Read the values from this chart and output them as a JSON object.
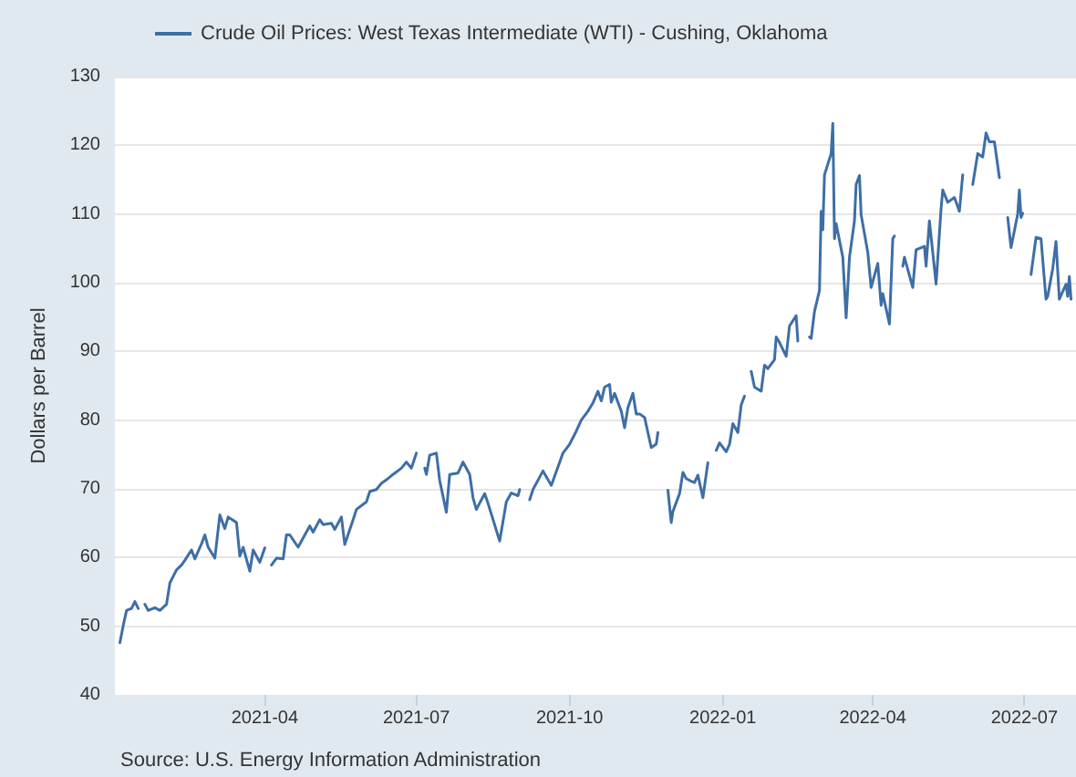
{
  "chart_data": {
    "type": "line",
    "ylabel": "Dollars per Barrel",
    "annotations": [
      "Source: U.S. Energy Information Administration"
    ],
    "x": [
      "2021-01-04",
      "2021-01-06",
      "2021-01-08",
      "2021-01-11",
      "2021-01-13",
      "2021-01-15",
      "2021-01-18",
      "2021-01-19",
      "2021-01-21",
      "2021-01-25",
      "2021-01-28",
      "2021-02-01",
      "2021-02-03",
      "2021-02-07",
      "2021-02-10",
      "2021-02-12",
      "2021-02-16",
      "2021-02-18",
      "2021-02-22",
      "2021-02-24",
      "2021-02-26",
      "2021-03-02",
      "2021-03-05",
      "2021-03-08",
      "2021-03-10",
      "2021-03-15",
      "2021-03-17",
      "2021-03-19",
      "2021-03-23",
      "2021-03-25",
      "2021-03-29",
      "2021-04-01",
      "2021-04-02",
      "2021-04-05",
      "2021-04-08",
      "2021-04-12",
      "2021-04-14",
      "2021-04-16",
      "2021-04-21",
      "2021-04-23",
      "2021-04-28",
      "2021-04-30",
      "2021-05-04",
      "2021-05-06",
      "2021-05-11",
      "2021-05-13",
      "2021-05-17",
      "2021-05-19",
      "2021-05-24",
      "2021-05-26",
      "2021-06-01",
      "2021-06-03",
      "2021-06-07",
      "2021-06-10",
      "2021-06-14",
      "2021-06-17",
      "2021-06-22",
      "2021-06-25",
      "2021-06-28",
      "2021-07-01",
      "2021-07-05",
      "2021-07-06",
      "2021-07-07",
      "2021-07-09",
      "2021-07-13",
      "2021-07-15",
      "2021-07-19",
      "2021-07-21",
      "2021-07-26",
      "2021-07-29",
      "2021-08-02",
      "2021-08-04",
      "2021-08-06",
      "2021-08-11",
      "2021-08-13",
      "2021-08-20",
      "2021-08-24",
      "2021-08-27",
      "2021-08-31",
      "2021-09-01",
      "2021-09-06",
      "2021-09-07",
      "2021-09-09",
      "2021-09-15",
      "2021-09-20",
      "2021-09-27",
      "2021-10-01",
      "2021-10-05",
      "2021-10-08",
      "2021-10-12",
      "2021-10-15",
      "2021-10-18",
      "2021-10-20",
      "2021-10-22",
      "2021-10-25",
      "2021-10-26",
      "2021-10-28",
      "2021-11-01",
      "2021-11-03",
      "2021-11-05",
      "2021-11-08",
      "2021-11-10",
      "2021-11-12",
      "2021-11-15",
      "2021-11-17",
      "2021-11-19",
      "2021-11-22",
      "2021-11-23",
      "2021-11-25",
      "2021-11-29",
      "2021-12-01",
      "2021-12-02",
      "2021-12-06",
      "2021-12-08",
      "2021-12-10",
      "2021-12-13",
      "2021-12-15",
      "2021-12-17",
      "2021-12-20",
      "2021-12-23",
      "2021-12-24",
      "2021-12-28",
      "2021-12-30",
      "2022-01-03",
      "2022-01-05",
      "2022-01-07",
      "2022-01-10",
      "2022-01-12",
      "2022-01-14",
      "2022-01-17",
      "2022-01-18",
      "2022-01-20",
      "2022-01-24",
      "2022-01-26",
      "2022-01-28",
      "2022-02-01",
      "2022-02-02",
      "2022-02-04",
      "2022-02-08",
      "2022-02-10",
      "2022-02-14",
      "2022-02-15",
      "2022-02-21",
      "2022-02-22",
      "2022-02-23",
      "2022-02-25",
      "2022-02-28",
      "2022-03-01",
      "2022-03-02",
      "2022-03-03",
      "2022-03-07",
      "2022-03-08",
      "2022-03-09",
      "2022-03-10",
      "2022-03-14",
      "2022-03-16",
      "2022-03-18",
      "2022-03-21",
      "2022-03-22",
      "2022-03-24",
      "2022-03-25",
      "2022-03-29",
      "2022-03-31",
      "2022-04-04",
      "2022-04-06",
      "2022-04-07",
      "2022-04-11",
      "2022-04-13",
      "2022-04-14",
      "2022-04-15",
      "2022-04-19",
      "2022-04-20",
      "2022-04-25",
      "2022-04-27",
      "2022-05-02",
      "2022-05-03",
      "2022-05-05",
      "2022-05-09",
      "2022-05-12",
      "2022-05-13",
      "2022-05-16",
      "2022-05-20",
      "2022-05-23",
      "2022-05-25",
      "2022-05-30",
      "2022-05-31",
      "2022-06-03",
      "2022-06-06",
      "2022-06-08",
      "2022-06-10",
      "2022-06-13",
      "2022-06-14",
      "2022-06-16",
      "2022-06-20",
      "2022-06-21",
      "2022-06-22",
      "2022-06-23",
      "2022-06-27",
      "2022-06-28",
      "2022-06-29",
      "2022-06-30",
      "2022-07-04",
      "2022-07-05",
      "2022-07-08",
      "2022-07-11",
      "2022-07-14",
      "2022-07-15",
      "2022-07-18",
      "2022-07-20",
      "2022-07-22",
      "2022-07-26",
      "2022-07-27",
      "2022-07-28",
      "2022-07-29"
    ],
    "series": [
      {
        "name": "Crude Oil Prices: West Texas Intermediate (WTI) - Cushing, Oklahoma",
        "color": "#3e6ea6",
        "values": [
          47.6,
          50.1,
          52.3,
          52.6,
          53.6,
          52.6,
          null,
          53.2,
          52.3,
          52.7,
          52.3,
          53.2,
          56.3,
          58.2,
          58.9,
          59.6,
          61.1,
          59.8,
          62.0,
          63.3,
          61.5,
          59.9,
          66.2,
          64.2,
          65.9,
          65.1,
          60.2,
          61.5,
          58.0,
          61.1,
          59.3,
          61.4,
          null,
          58.9,
          59.9,
          59.8,
          63.3,
          63.3,
          61.5,
          62.4,
          64.6,
          63.7,
          65.5,
          64.8,
          65.0,
          64.1,
          65.9,
          61.9,
          65.5,
          67.0,
          68.1,
          69.6,
          69.9,
          70.8,
          71.5,
          72.1,
          73.0,
          73.9,
          73.0,
          75.2,
          null,
          73.0,
          72.1,
          74.9,
          75.2,
          71.2,
          66.6,
          72.1,
          72.3,
          73.9,
          72.1,
          68.7,
          67.0,
          69.3,
          67.9,
          62.4,
          68.1,
          69.4,
          69.0,
          69.9,
          null,
          68.4,
          69.9,
          72.6,
          70.5,
          75.2,
          76.5,
          78.4,
          80.0,
          81.3,
          82.5,
          84.2,
          82.8,
          84.8,
          85.2,
          82.6,
          83.9,
          81.3,
          78.9,
          81.8,
          83.9,
          80.9,
          80.9,
          80.4,
          78.2,
          76.0,
          76.5,
          78.2,
          null,
          69.8,
          65.1,
          66.7,
          69.3,
          72.4,
          71.5,
          71.1,
          70.9,
          72.0,
          68.7,
          73.8,
          null,
          75.6,
          76.7,
          75.4,
          76.5,
          79.5,
          78.2,
          82.2,
          83.5,
          null,
          87.1,
          84.8,
          84.2,
          88.0,
          87.5,
          88.8,
          92.1,
          91.3,
          89.3,
          93.7,
          95.2,
          91.5,
          null,
          92.1,
          91.9,
          95.8,
          98.9,
          110.4,
          107.7,
          115.7,
          118.8,
          123.2,
          106.4,
          108.6,
          103.7,
          94.9,
          103.7,
          109.0,
          114.3,
          115.6,
          109.9,
          104.4,
          99.3,
          102.8,
          96.7,
          98.4,
          94.0,
          106.4,
          106.8,
          null,
          102.4,
          103.7,
          99.3,
          104.8,
          105.3,
          102.4,
          109.0,
          99.8,
          110.8,
          113.5,
          111.7,
          112.4,
          110.4,
          115.7,
          null,
          114.3,
          118.8,
          118.3,
          121.8,
          120.5,
          120.5,
          118.8,
          115.3,
          null,
          109.5,
          107.3,
          105.1,
          110.0,
          113.5,
          109.5,
          110.1,
          null,
          101.2,
          106.6,
          106.4,
          97.6,
          98.0,
          102.0,
          106.0,
          97.6,
          99.8,
          98.0,
          100.9,
          97.6
        ]
      }
    ],
    "xlim": [
      "2021-01-01",
      "2022-08-01"
    ],
    "xticks": [
      "2021-04",
      "2021-07",
      "2021-10",
      "2022-01",
      "2022-04",
      "2022-07"
    ],
    "ylim": [
      40,
      130
    ],
    "yticks": [
      40,
      50,
      60,
      70,
      80,
      90,
      100,
      110,
      120,
      130
    ],
    "grid": "y",
    "legend": "top left",
    "marker": "none",
    "line_style": "solid"
  }
}
